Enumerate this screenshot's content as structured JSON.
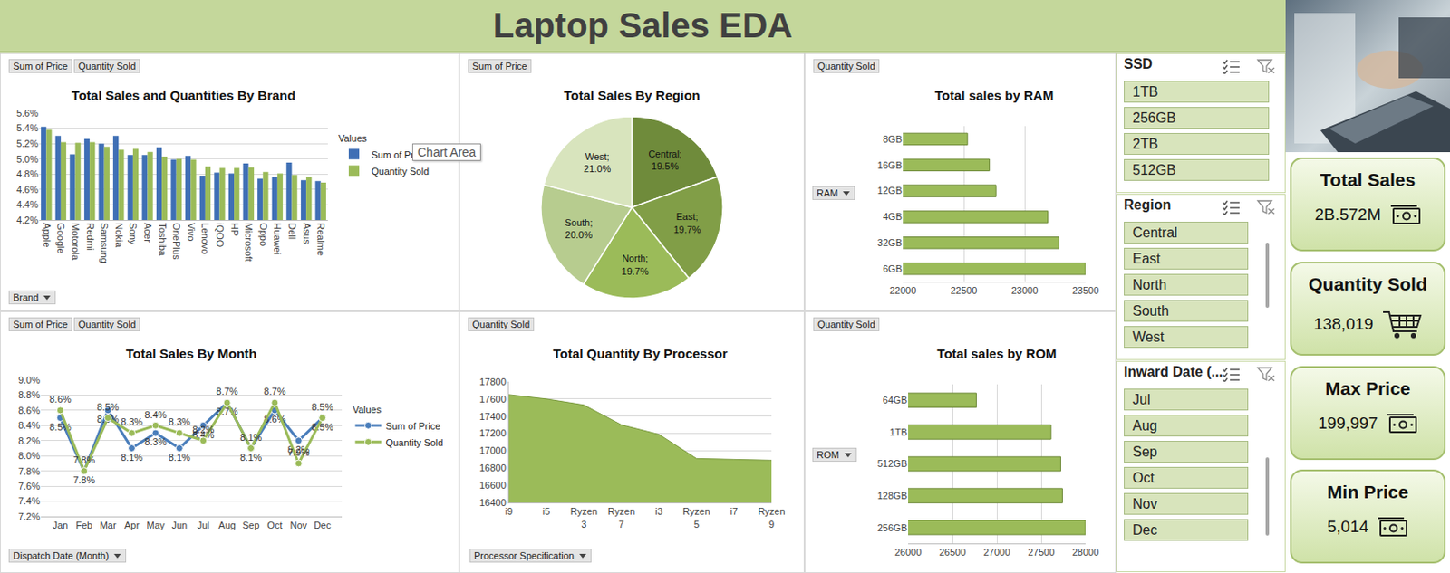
{
  "header": {
    "title": "Laptop Sales EDA"
  },
  "tooltip": "Chart Area",
  "chart_data": [
    {
      "type": "bar",
      "title": "Total Sales and Quantities By Brand",
      "field_buttons": [
        "Sum of Price",
        "Quantity Sold"
      ],
      "axis_button": "Brand",
      "legend_title": "Values",
      "categories": [
        "Apple",
        "Google",
        "Motorola",
        "Redmi",
        "Samsung",
        "Nokia",
        "Sony",
        "Acer",
        "Toshiba",
        "OnePlus",
        "Vivo",
        "Lenovo",
        "iQOO",
        "HP",
        "Microsoft",
        "Oppo",
        "Huawei",
        "Dell",
        "Asus",
        "Realme"
      ],
      "series": [
        {
          "name": "Sum of Price",
          "color": "#3f6fb5",
          "values": [
            5.42,
            5.3,
            5.06,
            5.26,
            5.2,
            5.3,
            5.05,
            5.05,
            5.15,
            4.99,
            5.04,
            4.78,
            4.82,
            4.81,
            4.94,
            4.74,
            4.76,
            4.95,
            4.72,
            4.71
          ]
        },
        {
          "name": "Quantity Sold",
          "color": "#9bbb59",
          "values": [
            5.38,
            5.22,
            5.21,
            5.22,
            5.16,
            5.12,
            5.13,
            5.09,
            5.03,
            5.0,
            4.99,
            4.9,
            4.88,
            4.88,
            4.89,
            4.83,
            4.81,
            4.79,
            4.76,
            4.69
          ]
        }
      ],
      "ylim": [
        4.2,
        5.6
      ],
      "yticks": [
        {
          "value": 4.2,
          "label": "4.2%"
        },
        {
          "value": 4.4,
          "label": "4.4%"
        },
        {
          "value": 4.6,
          "label": "4.6%"
        },
        {
          "value": 4.8,
          "label": "4.8%"
        },
        {
          "value": 5.0,
          "label": "5.0%"
        },
        {
          "value": 5.2,
          "label": "5.2%"
        },
        {
          "value": 5.4,
          "label": "5.4%"
        },
        {
          "value": 5.6,
          "label": "5.6%"
        }
      ],
      "grid": true,
      "legend": "right"
    },
    {
      "type": "pie",
      "title": "Total Sales By Region",
      "field_buttons": [
        "Sum of Price"
      ],
      "categories": [
        "Central",
        "East",
        "North",
        "South",
        "West"
      ],
      "values": [
        19.5,
        19.7,
        19.7,
        20.0,
        21.0
      ],
      "value_labels": [
        "Central; 19.5%",
        "East; 19.7%",
        "North; 19.7%",
        "South; 20.0%",
        "West; 21.0%"
      ],
      "colors": [
        "#6f8b3b",
        "#819e47",
        "#9bbb59",
        "#b7cc8f",
        "#d8e4bd"
      ],
      "data_labels": true
    },
    {
      "type": "bar",
      "orientation": "horizontal",
      "title": "Total sales by RAM",
      "field_buttons": [
        "Quantity Sold"
      ],
      "axis_button": "RAM",
      "categories": [
        "6GB",
        "32GB",
        "4GB",
        "12GB",
        "16GB",
        "8GB"
      ],
      "values": [
        23500,
        23280,
        23190,
        22765,
        22710,
        22530
      ],
      "color": "#9bbb59",
      "xlim": [
        22000,
        23500
      ],
      "xticks": [
        22000,
        22500,
        23000,
        23500
      ],
      "grid": true
    },
    {
      "type": "line",
      "title": "Total Sales By Month",
      "field_buttons": [
        "Sum of Price",
        "Quantity Sold"
      ],
      "axis_button": "Dispatch Date (Month)",
      "legend_title": "Values",
      "categories": [
        "Jan",
        "Feb",
        "Mar",
        "Apr",
        "May",
        "Jun",
        "Jul",
        "Aug",
        "Sep",
        "Oct",
        "Nov",
        "Dec"
      ],
      "series": [
        {
          "name": "Sum of Price",
          "color": "#4a7ebb",
          "values": [
            8.5,
            7.8,
            8.6,
            8.1,
            8.3,
            8.1,
            8.4,
            8.7,
            8.1,
            8.6,
            8.2,
            8.5
          ],
          "value_labels": [
            "8.5%",
            "7.8%",
            "8.6%",
            "8.1%",
            "8.3%",
            "8.1%",
            "8.4%",
            "8.7%",
            "8.1%",
            "8.6%",
            "8.2%",
            "8.5%"
          ]
        },
        {
          "name": "Quantity Sold",
          "color": "#9bbb59",
          "values": [
            8.6,
            7.8,
            8.5,
            8.3,
            8.4,
            8.3,
            8.2,
            8.7,
            8.1,
            8.7,
            7.9,
            8.5
          ],
          "value_labels": [
            "8.6%",
            "7.8%",
            "8.5%",
            "8.3%",
            "8.4%",
            "8.3%",
            "8.2%",
            "8.7%",
            "8.1%",
            "8.7%",
            "7.9%",
            "8.5%"
          ]
        }
      ],
      "ylim": [
        7.2,
        9.0
      ],
      "yticks": [
        {
          "value": 7.2,
          "label": "7.2%"
        },
        {
          "value": 7.4,
          "label": "7.4%"
        },
        {
          "value": 7.6,
          "label": "7.6%"
        },
        {
          "value": 7.8,
          "label": "7.8%"
        },
        {
          "value": 8.0,
          "label": "8.0%"
        },
        {
          "value": 8.2,
          "label": "8.2%"
        },
        {
          "value": 8.4,
          "label": "8.4%"
        },
        {
          "value": 8.6,
          "label": "8.6%"
        },
        {
          "value": 8.8,
          "label": "8.8%"
        },
        {
          "value": 9.0,
          "label": "9.0%"
        }
      ],
      "grid": true,
      "legend": "right",
      "data_labels": true,
      "marker": "circle"
    },
    {
      "type": "area",
      "title": "Total Quantity By Processor",
      "field_buttons": [
        "Quantity Sold"
      ],
      "axis_button": "Processor Specification",
      "categories": [
        "i9",
        "i5",
        "Ryzen 3",
        "Ryzen 7",
        "i3",
        "Ryzen 5",
        "i7",
        "Ryzen 9"
      ],
      "values": [
        17650,
        17600,
        17530,
        17300,
        17190,
        16910,
        16900,
        16890
      ],
      "color": "#9bbb59",
      "ylim": [
        16400,
        17800
      ],
      "yticks": [
        16400,
        16600,
        16800,
        17000,
        17200,
        17400,
        17600,
        17800
      ],
      "grid": true
    },
    {
      "type": "bar",
      "orientation": "horizontal",
      "title": "Total sales by ROM",
      "field_buttons": [
        "Quantity Sold"
      ],
      "axis_button": "ROM",
      "categories": [
        "256GB",
        "128GB",
        "512GB",
        "1TB",
        "64GB"
      ],
      "values": [
        28000,
        27740,
        27720,
        27610,
        26770
      ],
      "color": "#9bbb59",
      "xlim": [
        26000,
        28000
      ],
      "xticks": [
        26000,
        26500,
        27000,
        27500,
        28000
      ],
      "grid": true
    }
  ],
  "slicers": [
    {
      "title": "SSD",
      "items": [
        "1TB",
        "256GB",
        "2TB",
        "512GB"
      ]
    },
    {
      "title": "Region",
      "items": [
        "Central",
        "East",
        "North",
        "South",
        "West"
      ]
    },
    {
      "title": "Inward Date (...",
      "items": [
        "Jul",
        "Aug",
        "Sep",
        "Oct",
        "Nov",
        "Dec"
      ]
    }
  ],
  "kpis": [
    {
      "title": "Total Sales",
      "value": "2B.572M"
    },
    {
      "title": "Quantity Sold",
      "value": "138,019"
    },
    {
      "title": "Max Price",
      "value": "199,997"
    },
    {
      "title": "Min Price",
      "value": "5,014"
    }
  ]
}
